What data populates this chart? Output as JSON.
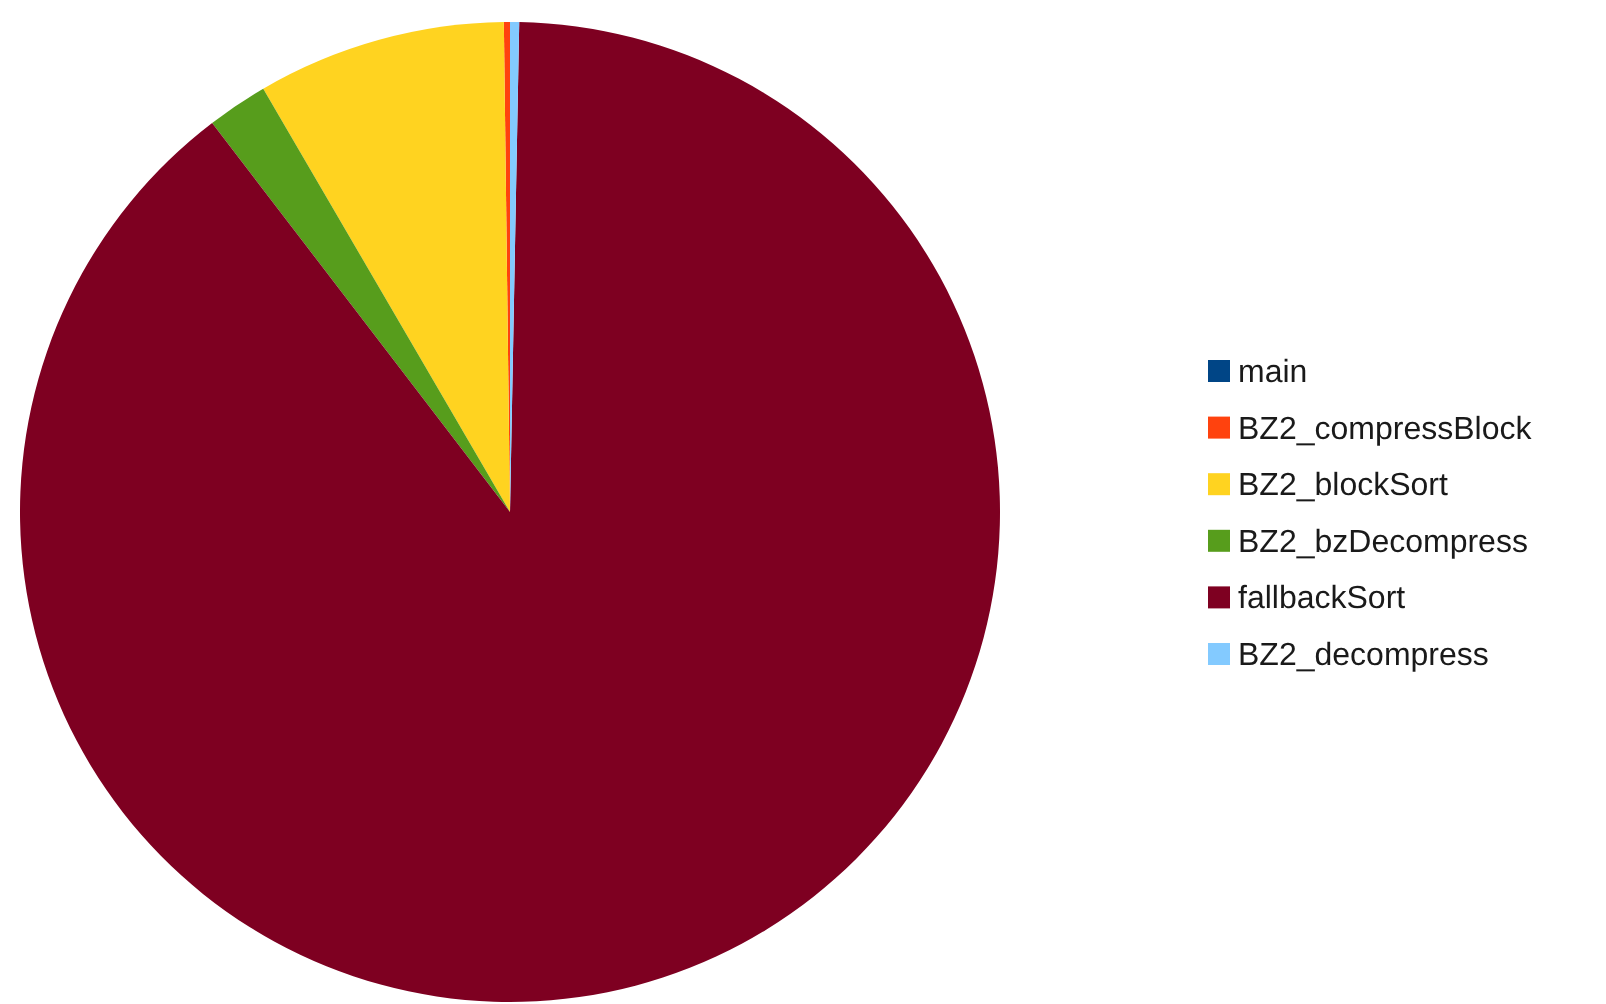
{
  "chart_data": {
    "type": "pie",
    "categories": [
      "main",
      "BZ2_compressBlock",
      "BZ2_blockSort",
      "BZ2_bzDecompress",
      "fallbackSort",
      "BZ2_decompress"
    ],
    "values": [
      0,
      0.2,
      8.2,
      2.0,
      89.3,
      0.3
    ],
    "colors": [
      "#004586",
      "#ff420e",
      "#ffd320",
      "#579d1c",
      "#7e0021",
      "#83caff"
    ],
    "legend": "right"
  }
}
